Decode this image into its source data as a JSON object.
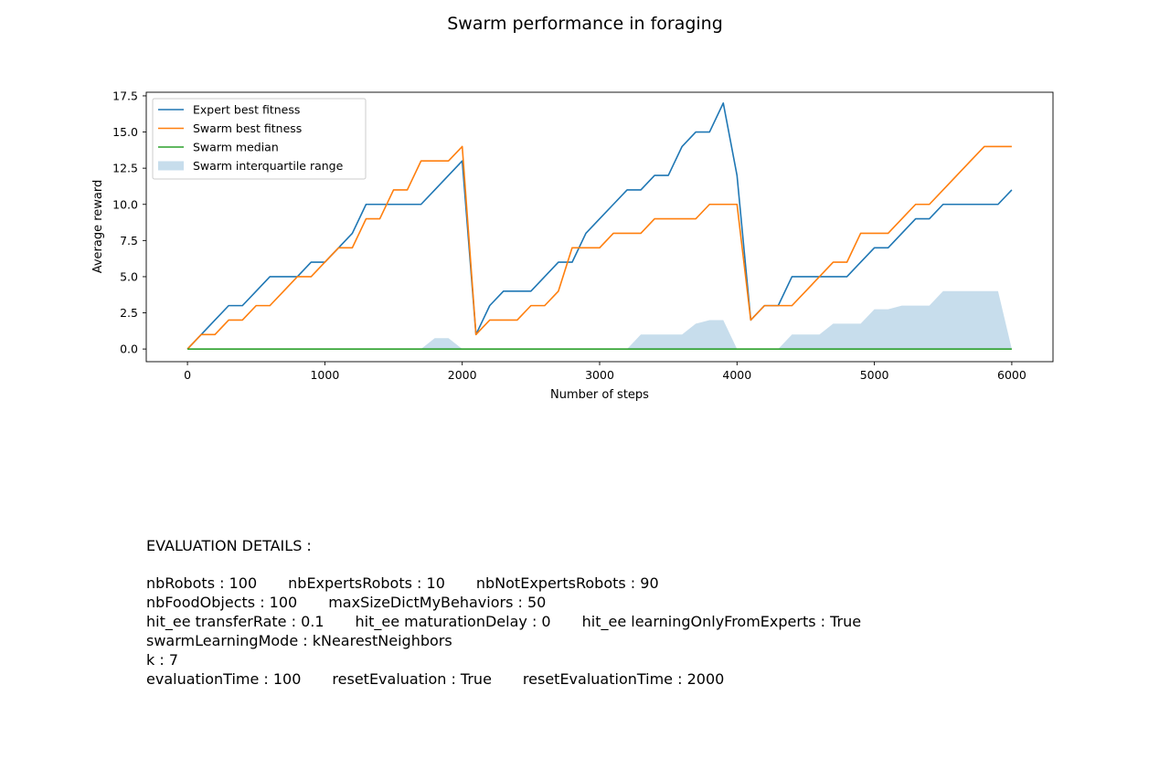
{
  "chart_data": {
    "type": "line",
    "title": "Swarm performance in foraging",
    "xlabel": "Number of steps",
    "ylabel": "Average reward",
    "xlim": [
      -300,
      6300
    ],
    "ylim": [
      -0.875,
      17.75
    ],
    "x_ticks": [
      0,
      1000,
      2000,
      3000,
      4000,
      5000,
      6000
    ],
    "x_tick_labels": [
      "0",
      "1000",
      "2000",
      "3000",
      "4000",
      "5000",
      "6000"
    ],
    "y_ticks": [
      0,
      2.5,
      5,
      7.5,
      10,
      12.5,
      15,
      17.5
    ],
    "y_tick_labels": [
      "0.0",
      "2.5",
      "5.0",
      "7.5",
      "10.0",
      "12.5",
      "15.0",
      "17.5"
    ],
    "grid": false,
    "legend_position": "top-left",
    "x": [
      0,
      100,
      200,
      300,
      400,
      500,
      600,
      700,
      800,
      900,
      1000,
      1100,
      1200,
      1300,
      1400,
      1500,
      1600,
      1700,
      1800,
      1900,
      2000,
      2100,
      2200,
      2300,
      2400,
      2500,
      2600,
      2700,
      2800,
      2900,
      3000,
      3100,
      3200,
      3300,
      3400,
      3500,
      3600,
      3700,
      3800,
      3900,
      4000,
      4100,
      4200,
      4300,
      4400,
      4500,
      4600,
      4700,
      4800,
      4900,
      5000,
      5100,
      5200,
      5300,
      5400,
      5500,
      5600,
      5700,
      5800,
      5900,
      6000
    ],
    "series": [
      {
        "name": "Expert best fitness",
        "color": "#1f77b4",
        "values": [
          0,
          1,
          2,
          3,
          3,
          4,
          5,
          5,
          5,
          6,
          6,
          7,
          8,
          10,
          10,
          10,
          10,
          10,
          11,
          12,
          13,
          1,
          3,
          4,
          4,
          4,
          5,
          6,
          6,
          8,
          9,
          10,
          11,
          11,
          12,
          12,
          14,
          15,
          15,
          17,
          12,
          2,
          3,
          3,
          5,
          5,
          5,
          5,
          5,
          6,
          7,
          7,
          8,
          9,
          9,
          10,
          10,
          10,
          10,
          10,
          11
        ]
      },
      {
        "name": "Swarm best fitness",
        "color": "#ff7f0e",
        "values": [
          0,
          1,
          1,
          2,
          2,
          3,
          3,
          4,
          5,
          5,
          6,
          7,
          7,
          9,
          9,
          11,
          11,
          13,
          13,
          13,
          14,
          1,
          2,
          2,
          2,
          3,
          3,
          4,
          7,
          7,
          7,
          8,
          8,
          8,
          9,
          9,
          9,
          9,
          10,
          10,
          10,
          2,
          3,
          3,
          3,
          4,
          5,
          6,
          6,
          8,
          8,
          8,
          9,
          10,
          10,
          11,
          12,
          13,
          14,
          14,
          14
        ]
      },
      {
        "name": "Swarm median",
        "color": "#2ca02c",
        "values": [
          0,
          0,
          0,
          0,
          0,
          0,
          0,
          0,
          0,
          0,
          0,
          0,
          0,
          0,
          0,
          0,
          0,
          0,
          0,
          0,
          0,
          0,
          0,
          0,
          0,
          0,
          0,
          0,
          0,
          0,
          0,
          0,
          0,
          0,
          0,
          0,
          0,
          0,
          0,
          0,
          0,
          0,
          0,
          0,
          0,
          0,
          0,
          0,
          0,
          0,
          0,
          0,
          0,
          0,
          0,
          0,
          0,
          0,
          0,
          0,
          0
        ]
      }
    ],
    "band": {
      "name": "Swarm interquartile range",
      "color": "#1f77b4",
      "opacity": 0.25,
      "lower": [
        0,
        0,
        0,
        0,
        0,
        0,
        0,
        0,
        0,
        0,
        0,
        0,
        0,
        0,
        0,
        0,
        0,
        0,
        0,
        0,
        0,
        0,
        0,
        0,
        0,
        0,
        0,
        0,
        0,
        0,
        0,
        0,
        0,
        0,
        0,
        0,
        0,
        0,
        0,
        0,
        0,
        0,
        0,
        0,
        0,
        0,
        0,
        0,
        0,
        0,
        0,
        0,
        0,
        0,
        0,
        0,
        0,
        0,
        0,
        0,
        0
      ],
      "upper": [
        0,
        0,
        0,
        0,
        0,
        0,
        0,
        0,
        0,
        0,
        0,
        0,
        0,
        0,
        0,
        0,
        0,
        0,
        0.75,
        0.75,
        0,
        0,
        0,
        0,
        0,
        0,
        0,
        0,
        0,
        0,
        0,
        0,
        0,
        1,
        1,
        1,
        1,
        1.75,
        2,
        2,
        0,
        0,
        0,
        0,
        1,
        1,
        1,
        1.75,
        1.75,
        1.75,
        2.75,
        2.75,
        3,
        3,
        3,
        4,
        4,
        4,
        4,
        4,
        0
      ]
    }
  },
  "details": {
    "heading": "EVALUATION DETAILS :",
    "lines": [
      [
        "nbRobots : 100",
        "nbExpertsRobots : 10",
        "nbNotExpertsRobots : 90"
      ],
      [
        "nbFoodObjects : 100",
        "maxSizeDictMyBehaviors : 50"
      ],
      [
        "hit_ee transferRate : 0.1",
        "hit_ee maturationDelay : 0",
        "hit_ee learningOnlyFromExperts : True"
      ],
      [
        "swarmLearningMode : kNearestNeighbors"
      ],
      [
        "k : 7"
      ],
      [
        "evaluationTime : 100",
        "resetEvaluation : True",
        "resetEvaluationTime : 2000"
      ]
    ]
  }
}
